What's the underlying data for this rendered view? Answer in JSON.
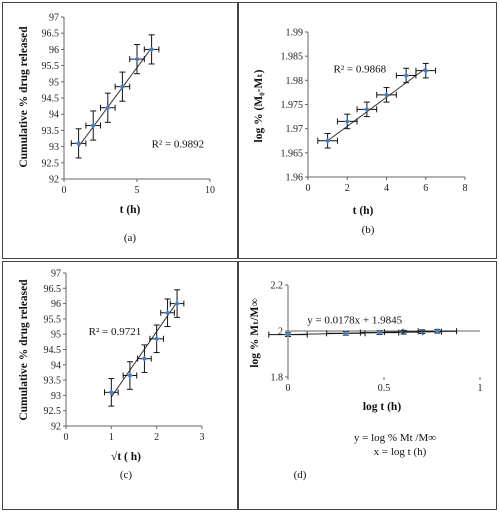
{
  "chart_data": [
    {
      "type": "scatter",
      "panel_label": "(a)",
      "xlabel": "t (h)",
      "ylabel": "Cumulative % drug released",
      "xlim": [
        0,
        10
      ],
      "ylim": [
        92,
        97
      ],
      "xticks": [
        0,
        5,
        10
      ],
      "yticks": [
        92,
        92.5,
        93,
        93.5,
        94,
        94.5,
        95,
        95.5,
        96,
        96.5,
        97
      ],
      "points": [
        {
          "x": 1,
          "y": 93.1,
          "xerr": 0.5,
          "yerr": 0.45
        },
        {
          "x": 2,
          "y": 93.65,
          "xerr": 0.5,
          "yerr": 0.45
        },
        {
          "x": 3,
          "y": 94.2,
          "xerr": 0.5,
          "yerr": 0.45
        },
        {
          "x": 4,
          "y": 94.85,
          "xerr": 0.5,
          "yerr": 0.45
        },
        {
          "x": 5,
          "y": 95.7,
          "xerr": 0.5,
          "yerr": 0.45
        },
        {
          "x": 6,
          "y": 96.0,
          "xerr": 0.5,
          "yerr": 0.45
        }
      ],
      "trendline": [
        [
          1,
          93.0
        ],
        [
          6,
          96.05
        ]
      ],
      "annotation": {
        "text": "R² = 0.9892",
        "x": 6,
        "y": 93.1
      }
    },
    {
      "type": "scatter",
      "panel_label": "(b)",
      "xlabel": "t (h)",
      "ylabel": "log % (M₀-Mₜ)",
      "xlim": [
        0,
        8
      ],
      "ylim": [
        1.96,
        1.99
      ],
      "xticks": [
        0,
        2,
        4,
        6,
        8
      ],
      "yticks": [
        1.96,
        1.965,
        1.97,
        1.975,
        1.98,
        1.985,
        1.99
      ],
      "points": [
        {
          "x": 1,
          "y": 1.9675,
          "xerr": 0.5,
          "yerr": 0.0015
        },
        {
          "x": 2,
          "y": 1.9715,
          "xerr": 0.5,
          "yerr": 0.0015
        },
        {
          "x": 3,
          "y": 1.974,
          "xerr": 0.5,
          "yerr": 0.0015
        },
        {
          "x": 4,
          "y": 1.977,
          "xerr": 0.5,
          "yerr": 0.0015
        },
        {
          "x": 5,
          "y": 1.981,
          "xerr": 0.5,
          "yerr": 0.0015
        },
        {
          "x": 6,
          "y": 1.982,
          "xerr": 0.5,
          "yerr": 0.0015
        }
      ],
      "trendline": [
        [
          1,
          1.9675
        ],
        [
          6,
          1.9825
        ]
      ],
      "annotation": {
        "text": "R² = 0.9868",
        "x": 1.3,
        "y": 1.9825
      }
    },
    {
      "type": "scatter",
      "panel_label": "(c)",
      "xlabel": "√t ( h)",
      "ylabel": "Cumulative % drug released",
      "xlim": [
        0,
        3
      ],
      "ylim": [
        92,
        97
      ],
      "xticks": [
        0,
        1,
        2,
        3
      ],
      "yticks": [
        92,
        92.5,
        93,
        93.5,
        94,
        94.5,
        95,
        95.5,
        96,
        96.5,
        97
      ],
      "points": [
        {
          "x": 1.0,
          "y": 93.1,
          "xerr": 0.15,
          "yerr": 0.45
        },
        {
          "x": 1.41,
          "y": 93.65,
          "xerr": 0.15,
          "yerr": 0.45
        },
        {
          "x": 1.73,
          "y": 94.2,
          "xerr": 0.15,
          "yerr": 0.45
        },
        {
          "x": 2.0,
          "y": 94.85,
          "xerr": 0.15,
          "yerr": 0.45
        },
        {
          "x": 2.24,
          "y": 95.7,
          "xerr": 0.15,
          "yerr": 0.45
        },
        {
          "x": 2.45,
          "y": 96.0,
          "xerr": 0.15,
          "yerr": 0.45
        }
      ],
      "trendline": [
        [
          1.0,
          92.95
        ],
        [
          2.45,
          96.05
        ]
      ],
      "annotation": {
        "text": "R² = 0.9721",
        "x": 0.5,
        "y": 95.1
      }
    },
    {
      "type": "scatter",
      "panel_label": "(d)",
      "xlabel": "log t (h)",
      "ylabel": "log % Mₜ/M∞",
      "xlim": [
        0,
        1
      ],
      "ylim": [
        1.8,
        2.2
      ],
      "xticks": [
        0,
        0.5,
        1
      ],
      "ytick_labels": [
        "1.8",
        "2",
        "2.2"
      ],
      "yticks": [
        1.8,
        2.0,
        2.2
      ],
      "points": [
        {
          "x": 0,
          "y": 1.9845
        },
        {
          "x": 0.301,
          "y": 1.99
        },
        {
          "x": 0.477,
          "y": 1.993
        },
        {
          "x": 0.602,
          "y": 1.995
        },
        {
          "x": 0.699,
          "y": 1.997
        },
        {
          "x": 0.778,
          "y": 1.999
        }
      ],
      "xerr": 0.1,
      "yerr": 0.008,
      "trendline": [
        [
          0,
          1.9845
        ],
        [
          0.88,
          2.0002
        ]
      ],
      "annotation": {
        "text": "y = 0.0178x + 1.9845",
        "x": 0.1,
        "y": 2.05
      },
      "notes": [
        "y = log % Mt /M∞",
        "x = log t (h)"
      ]
    }
  ]
}
